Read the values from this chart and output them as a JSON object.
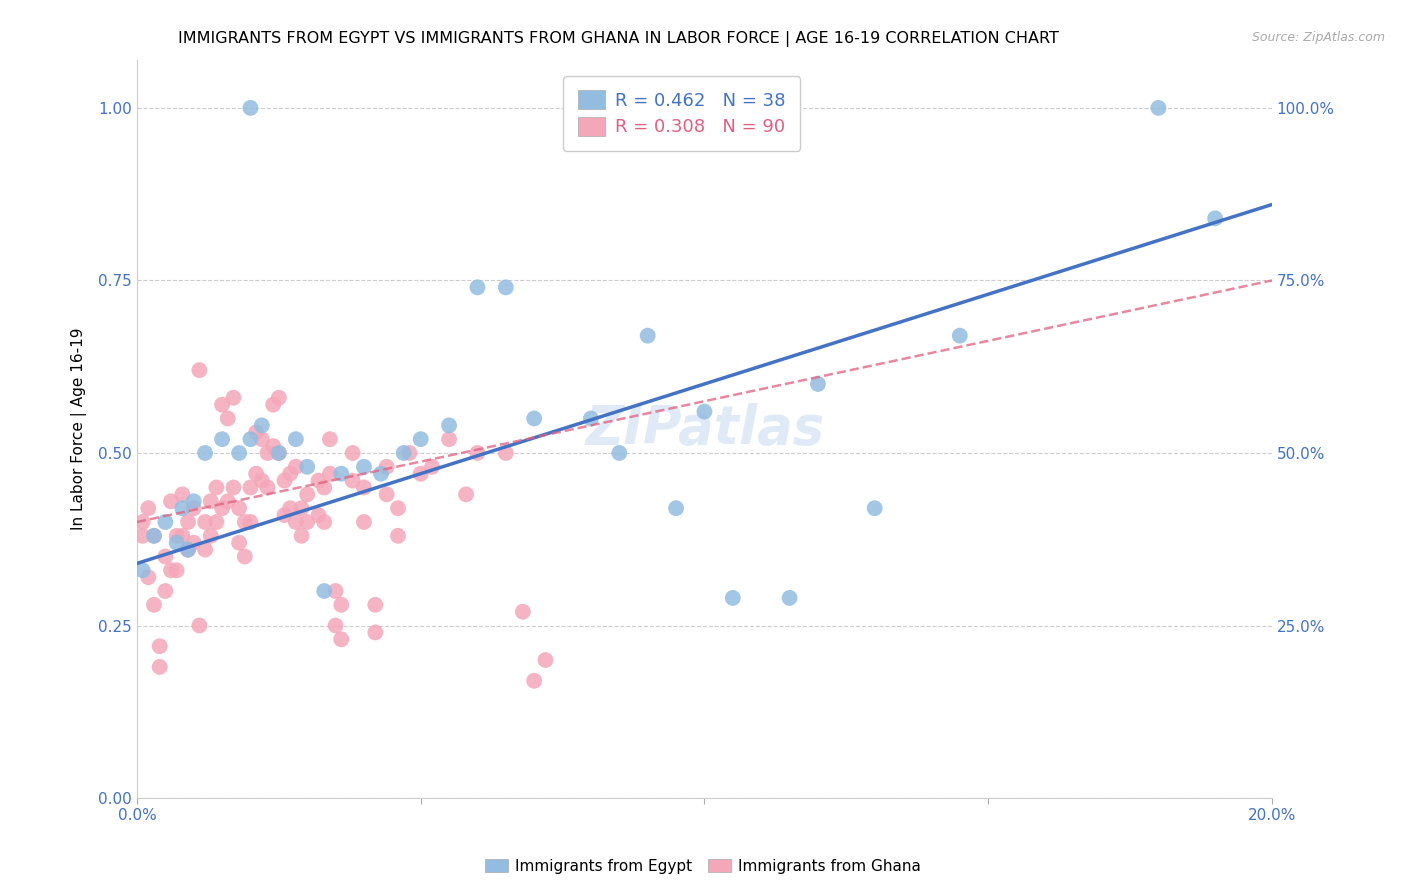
{
  "title": "IMMIGRANTS FROM EGYPT VS IMMIGRANTS FROM GHANA IN LABOR FORCE | AGE 16-19 CORRELATION CHART",
  "source": "Source: ZipAtlas.com",
  "ylabel": "In Labor Force | Age 16-19",
  "xlim": [
    0.0,
    0.2
  ],
  "ylim": [
    0.0,
    1.07
  ],
  "xticks": [
    0.0,
    0.05,
    0.1,
    0.15,
    0.2
  ],
  "xtick_labels": [
    "0.0%",
    "",
    "",
    "",
    "20.0%"
  ],
  "ytick_labels": [
    "",
    "25.0%",
    "50.0%",
    "75.0%",
    "100.0%"
  ],
  "yticks": [
    0.0,
    0.25,
    0.5,
    0.75,
    1.0
  ],
  "egypt_color": "#92bce0",
  "ghana_color": "#f4a7b9",
  "egypt_line_color": "#4472c4",
  "ghana_line_color": "#e06080",
  "egypt_R": 0.462,
  "egypt_N": 38,
  "ghana_R": 0.308,
  "ghana_N": 90,
  "watermark": "ZIPatlas",
  "legend_egypt_label": "Immigrants from Egypt",
  "legend_ghana_label": "Immigrants from Ghana",
  "egypt_line_x0": 0.0,
  "egypt_line_y0": 0.34,
  "egypt_line_x1": 0.2,
  "egypt_line_y1": 0.86,
  "ghana_line_x0": 0.0,
  "ghana_line_y0": 0.4,
  "ghana_line_x1": 0.2,
  "ghana_line_y1": 0.75,
  "egypt_scatter_x": [
    0.001,
    0.02,
    0.003,
    0.005,
    0.007,
    0.008,
    0.009,
    0.01,
    0.012,
    0.015,
    0.018,
    0.02,
    0.022,
    0.025,
    0.028,
    0.03,
    0.033,
    0.036,
    0.04,
    0.043,
    0.047,
    0.05,
    0.055,
    0.06,
    0.065,
    0.07,
    0.08,
    0.085,
    0.09,
    0.095,
    0.1,
    0.105,
    0.115,
    0.12,
    0.13,
    0.145,
    0.18,
    0.19
  ],
  "egypt_scatter_y": [
    0.33,
    1.0,
    0.38,
    0.4,
    0.37,
    0.42,
    0.36,
    0.43,
    0.5,
    0.52,
    0.5,
    0.52,
    0.54,
    0.5,
    0.52,
    0.48,
    0.3,
    0.47,
    0.48,
    0.47,
    0.5,
    0.52,
    0.54,
    0.74,
    0.74,
    0.55,
    0.55,
    0.5,
    0.67,
    0.42,
    0.56,
    0.29,
    0.29,
    0.6,
    0.42,
    0.67,
    1.0,
    0.84
  ],
  "ghana_scatter_x": [
    0.001,
    0.002,
    0.003,
    0.004,
    0.005,
    0.006,
    0.007,
    0.008,
    0.009,
    0.01,
    0.011,
    0.012,
    0.013,
    0.014,
    0.015,
    0.016,
    0.017,
    0.018,
    0.019,
    0.02,
    0.021,
    0.022,
    0.023,
    0.024,
    0.025,
    0.026,
    0.027,
    0.028,
    0.029,
    0.03,
    0.032,
    0.033,
    0.034,
    0.035,
    0.036,
    0.038,
    0.04,
    0.042,
    0.044,
    0.046,
    0.048,
    0.05,
    0.052,
    0.055,
    0.058,
    0.06,
    0.065,
    0.068,
    0.07,
    0.072,
    0.001,
    0.002,
    0.003,
    0.004,
    0.005,
    0.006,
    0.007,
    0.008,
    0.009,
    0.01,
    0.011,
    0.012,
    0.013,
    0.014,
    0.015,
    0.016,
    0.017,
    0.018,
    0.019,
    0.02,
    0.021,
    0.022,
    0.023,
    0.024,
    0.025,
    0.026,
    0.027,
    0.028,
    0.029,
    0.03,
    0.032,
    0.033,
    0.034,
    0.035,
    0.036,
    0.038,
    0.04,
    0.042,
    0.044,
    0.046
  ],
  "ghana_scatter_y": [
    0.4,
    0.42,
    0.38,
    0.22,
    0.35,
    0.43,
    0.38,
    0.44,
    0.4,
    0.42,
    0.62,
    0.4,
    0.43,
    0.45,
    0.57,
    0.55,
    0.58,
    0.42,
    0.4,
    0.45,
    0.53,
    0.52,
    0.5,
    0.57,
    0.58,
    0.46,
    0.47,
    0.48,
    0.42,
    0.44,
    0.46,
    0.45,
    0.52,
    0.3,
    0.28,
    0.5,
    0.45,
    0.28,
    0.48,
    0.42,
    0.5,
    0.47,
    0.48,
    0.52,
    0.44,
    0.5,
    0.5,
    0.27,
    0.17,
    0.2,
    0.38,
    0.32,
    0.28,
    0.19,
    0.3,
    0.33,
    0.33,
    0.38,
    0.36,
    0.37,
    0.25,
    0.36,
    0.38,
    0.4,
    0.42,
    0.43,
    0.45,
    0.37,
    0.35,
    0.4,
    0.47,
    0.46,
    0.45,
    0.51,
    0.5,
    0.41,
    0.42,
    0.4,
    0.38,
    0.4,
    0.41,
    0.4,
    0.47,
    0.25,
    0.23,
    0.46,
    0.4,
    0.24,
    0.44,
    0.38
  ]
}
